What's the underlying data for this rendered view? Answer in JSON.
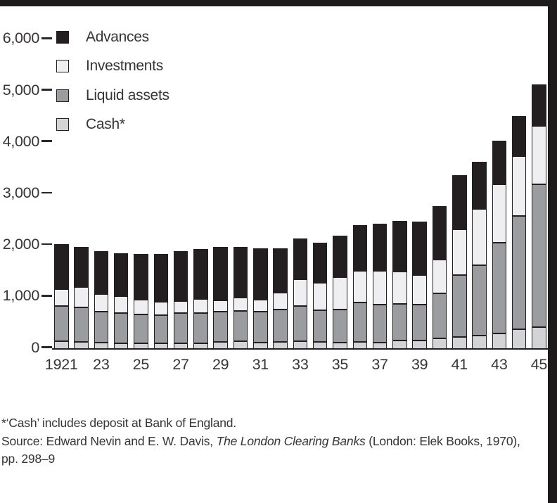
{
  "page": {
    "background": "#ffffff",
    "top_strip_color": "#1e1a1b",
    "right_strip_color": "#1e1a1b",
    "text_color": "#383436"
  },
  "legend": {
    "items": [
      {
        "label": "Advances",
        "color": "#231f20"
      },
      {
        "label": "Investments",
        "color": "#efeff1"
      },
      {
        "label": "Liquid assets",
        "color": "#9a9c9f"
      },
      {
        "label": "Cash*",
        "color": "#d3d4d6"
      }
    ]
  },
  "chart_data": {
    "type": "bar",
    "stacked": true,
    "title": "",
    "xlabel": "",
    "ylabel": "",
    "ylim": [
      0,
      6000
    ],
    "y_ticks": [
      0,
      1000,
      2000,
      3000,
      4000,
      5000,
      6000
    ],
    "y_tick_labels": [
      "0",
      "1,000",
      "2,000",
      "3,000",
      "4,000",
      "5,000",
      "6,000"
    ],
    "grid": false,
    "legend_position": "top-left",
    "categories": [
      1921,
      1922,
      1923,
      1924,
      1925,
      1926,
      1927,
      1928,
      1929,
      1930,
      1931,
      1932,
      1933,
      1934,
      1935,
      1936,
      1937,
      1938,
      1939,
      1940,
      1941,
      1942,
      1943,
      1944,
      1945
    ],
    "x_tick_labels": [
      "1921",
      "23",
      "25",
      "27",
      "29",
      "31",
      "33",
      "35",
      "37",
      "39",
      "41",
      "43",
      "45"
    ],
    "x_tick_every": 2,
    "stack_order_bottom_to_top": [
      "Cash*",
      "Liquid assets",
      "Investments",
      "Advances"
    ],
    "series": [
      {
        "name": "Cash*",
        "color": "#d3d4d6",
        "values": [
          150,
          140,
          120,
          110,
          110,
          110,
          110,
          110,
          140,
          150,
          120,
          140,
          150,
          140,
          120,
          140,
          120,
          170,
          170,
          210,
          230,
          260,
          300,
          390,
          430
        ]
      },
      {
        "name": "Liquid assets",
        "color": "#9a9c9f",
        "values": [
          690,
          670,
          610,
          590,
          560,
          550,
          590,
          580,
          590,
          590,
          610,
          620,
          690,
          610,
          650,
          760,
          740,
          700,
          690,
          870,
          1200,
          1360,
          1760,
          2190,
          2770
        ]
      },
      {
        "name": "Investments",
        "color": "#efeff1",
        "values": [
          320,
          390,
          340,
          320,
          280,
          260,
          230,
          280,
          220,
          260,
          230,
          330,
          510,
          540,
          620,
          620,
          660,
          630,
          580,
          660,
          890,
          1100,
          1140,
          1170,
          1130
        ]
      },
      {
        "name": "Advances",
        "color": "#231f20",
        "values": [
          880,
          780,
          830,
          840,
          890,
          920,
          970,
          970,
          1030,
          980,
          990,
          870,
          800,
          780,
          810,
          880,
          910,
          990,
          1030,
          1030,
          1050,
          910,
          840,
          780,
          800
        ]
      }
    ]
  },
  "footnote": {
    "line1": "*‘Cash’ includes deposit at Bank of England.",
    "source_prefix": "Source: Edward Nevin and E. W. Davis, ",
    "source_italic": "The London Clearing Banks",
    "source_suffix": " (London: Elek Books, 1970),",
    "source_pages": "pp. 298–9"
  }
}
